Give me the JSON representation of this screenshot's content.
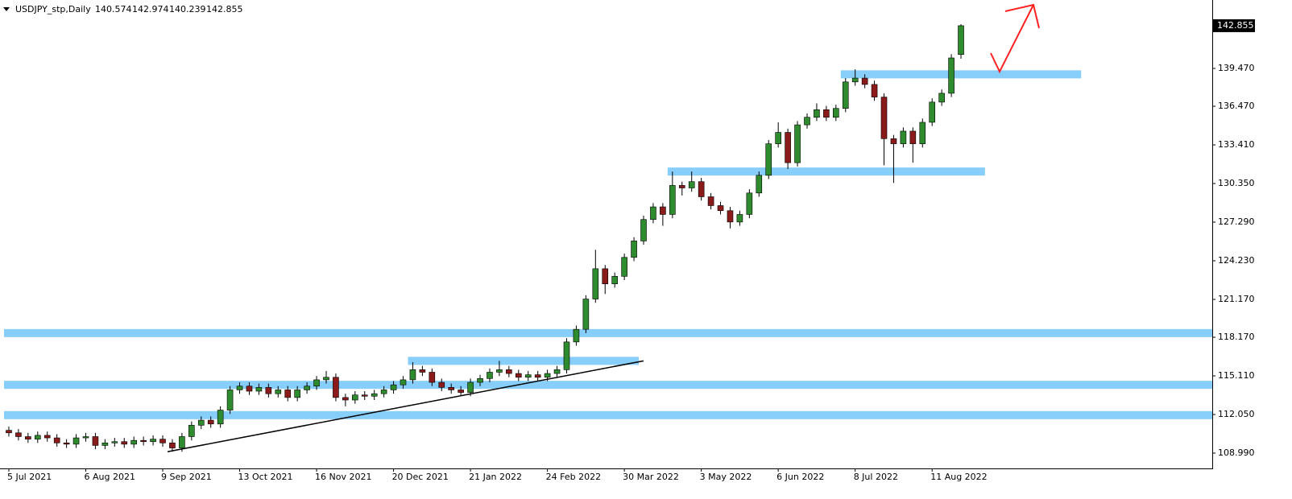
{
  "chart_data": {
    "type": "candlestick",
    "title": "USDJPY_stp,Daily",
    "bull_color": "#2e8b2e",
    "bear_color": "#8b1a1a",
    "zone_color": "#87cefa",
    "trend_color": "#000000",
    "ylim": [
      107.78,
      144.89
    ],
    "yticks": [
      {
        "value": 108.99,
        "label": "108.990"
      },
      {
        "value": 112.05,
        "label": "112.050"
      },
      {
        "value": 115.11,
        "label": "115.110"
      },
      {
        "value": 118.17,
        "label": "118.170"
      },
      {
        "value": 121.17,
        "label": "121.170"
      },
      {
        "value": 124.23,
        "label": "124.230"
      },
      {
        "value": 127.29,
        "label": "127.290"
      },
      {
        "value": 130.35,
        "label": "130.350"
      },
      {
        "value": 133.41,
        "label": "133.410"
      },
      {
        "value": 136.47,
        "label": "136.470"
      },
      {
        "value": 139.47,
        "label": "139.470"
      }
    ],
    "categories": [
      "5 Jul 2021",
      null,
      null,
      null,
      null,
      null,
      null,
      null,
      "6 Aug 2021",
      null,
      null,
      null,
      null,
      null,
      null,
      null,
      "9 Sep 2021",
      null,
      null,
      null,
      null,
      null,
      null,
      null,
      "13 Oct 2021",
      null,
      null,
      null,
      null,
      null,
      null,
      null,
      "16 Nov 2021",
      null,
      null,
      null,
      null,
      null,
      null,
      null,
      "20 Dec 2021",
      null,
      null,
      null,
      null,
      null,
      null,
      null,
      "21 Jan 2022",
      null,
      null,
      null,
      null,
      null,
      null,
      null,
      "24 Feb 2022",
      null,
      null,
      null,
      null,
      null,
      null,
      null,
      "30 Mar 2022",
      null,
      null,
      null,
      null,
      null,
      null,
      null,
      "3 May 2022",
      null,
      null,
      null,
      null,
      null,
      null,
      null,
      "6 Jun 2022",
      null,
      null,
      null,
      null,
      null,
      null,
      null,
      "8 Jul 2022",
      null,
      null,
      null,
      null,
      null,
      null,
      null,
      "11 Aug 2022",
      null,
      null,
      null
    ],
    "open": [
      110.8,
      110.6,
      110.3,
      110.1,
      110.4,
      110.2,
      109.8,
      109.7,
      110.2,
      110.3,
      109.6,
      109.8,
      109.9,
      109.7,
      110.0,
      109.9,
      110.1,
      109.8,
      109.4,
      110.3,
      111.2,
      111.6,
      111.3,
      112.4,
      114.0,
      114.3,
      113.9,
      114.2,
      113.7,
      114.0,
      113.4,
      114.0,
      114.3,
      114.8,
      115.0,
      113.4,
      113.2,
      113.6,
      113.5,
      113.7,
      114.0,
      114.4,
      114.8,
      115.6,
      115.4,
      114.6,
      114.2,
      114.0,
      113.8,
      114.6,
      114.9,
      115.4,
      115.6,
      115.3,
      115.0,
      115.2,
      115.0,
      115.3,
      115.6,
      117.8,
      118.8,
      121.2,
      123.6,
      122.4,
      123.0,
      124.5,
      125.8,
      127.5,
      128.5,
      127.9,
      130.2,
      130.0,
      130.5,
      129.3,
      128.6,
      128.2,
      127.3,
      127.9,
      129.6,
      131.0,
      133.5,
      134.4,
      132.0,
      135.0,
      135.6,
      136.2,
      135.6,
      136.3,
      138.4,
      138.7,
      138.2,
      137.2,
      133.9,
      133.5,
      134.5,
      133.5,
      135.2,
      136.8,
      137.5,
      140.574
    ],
    "high": [
      111.1,
      110.9,
      110.6,
      110.7,
      110.7,
      110.5,
      110.1,
      110.5,
      110.6,
      110.6,
      110.1,
      110.2,
      110.2,
      110.3,
      110.3,
      110.4,
      110.4,
      110.1,
      110.6,
      111.5,
      111.9,
      111.9,
      112.7,
      114.3,
      114.6,
      114.6,
      114.5,
      114.5,
      114.3,
      114.3,
      114.3,
      114.6,
      115.1,
      115.5,
      115.3,
      113.7,
      113.9,
      113.9,
      114.0,
      114.3,
      114.7,
      115.1,
      116.2,
      115.9,
      115.7,
      114.9,
      114.5,
      114.3,
      114.9,
      115.2,
      115.7,
      116.3,
      115.9,
      115.6,
      115.5,
      115.5,
      115.6,
      115.9,
      118.1,
      119.1,
      121.5,
      125.1,
      123.9,
      123.3,
      124.8,
      126.1,
      127.8,
      128.8,
      128.8,
      131.3,
      130.5,
      131.3,
      130.8,
      129.6,
      128.9,
      128.5,
      128.2,
      129.9,
      131.3,
      133.8,
      135.2,
      134.7,
      135.3,
      135.9,
      136.7,
      136.5,
      136.6,
      138.7,
      139.4,
      139.0,
      138.5,
      137.5,
      134.2,
      134.8,
      134.8,
      135.5,
      137.1,
      137.8,
      140.6,
      142.974
    ],
    "low": [
      110.3,
      110.0,
      109.8,
      109.8,
      109.9,
      109.5,
      109.4,
      109.4,
      109.9,
      109.3,
      109.3,
      109.5,
      109.4,
      109.4,
      109.6,
      109.6,
      109.5,
      109.1,
      109.1,
      110.0,
      110.9,
      111.0,
      111.0,
      112.1,
      113.7,
      113.6,
      113.6,
      113.4,
      113.4,
      113.1,
      113.1,
      113.7,
      114.0,
      114.5,
      113.1,
      112.7,
      112.9,
      113.2,
      113.2,
      113.4,
      113.7,
      114.1,
      114.5,
      115.1,
      114.3,
      113.9,
      113.7,
      113.5,
      113.5,
      114.3,
      114.6,
      115.1,
      115.0,
      114.7,
      114.7,
      114.7,
      114.7,
      115.0,
      115.3,
      117.5,
      118.5,
      120.9,
      121.6,
      122.1,
      122.7,
      124.2,
      125.5,
      127.2,
      127.0,
      127.6,
      129.4,
      129.7,
      129.0,
      128.3,
      127.9,
      126.8,
      127.0,
      127.6,
      129.3,
      130.7,
      133.2,
      131.5,
      131.7,
      134.7,
      135.3,
      135.3,
      135.3,
      136.0,
      138.1,
      137.9,
      136.9,
      131.8,
      130.4,
      133.2,
      132.0,
      133.2,
      134.9,
      136.5,
      137.2,
      140.239
    ],
    "close": [
      110.6,
      110.3,
      110.1,
      110.4,
      110.2,
      109.8,
      109.7,
      110.2,
      110.3,
      109.6,
      109.8,
      109.9,
      109.7,
      110.0,
      109.9,
      110.1,
      109.8,
      109.4,
      110.3,
      111.2,
      111.6,
      111.3,
      112.4,
      114.0,
      114.3,
      113.9,
      114.2,
      113.7,
      114.0,
      113.4,
      114.0,
      114.3,
      114.8,
      115.0,
      113.4,
      113.2,
      113.6,
      113.5,
      113.7,
      114.0,
      114.4,
      114.8,
      115.6,
      115.4,
      114.6,
      114.2,
      114.0,
      113.8,
      114.6,
      114.9,
      115.4,
      115.6,
      115.3,
      115.0,
      115.2,
      115.0,
      115.3,
      115.6,
      117.8,
      118.8,
      121.2,
      123.6,
      122.4,
      123.0,
      124.5,
      125.8,
      127.5,
      128.5,
      127.9,
      130.2,
      130.0,
      130.5,
      129.3,
      128.6,
      128.2,
      127.3,
      127.9,
      129.6,
      131.0,
      133.5,
      134.4,
      132.0,
      135.0,
      135.6,
      136.2,
      135.6,
      136.3,
      138.4,
      138.7,
      138.2,
      137.2,
      133.9,
      133.5,
      134.5,
      133.5,
      135.2,
      136.8,
      137.5,
      140.3,
      142.855
    ],
    "zones": [
      {
        "level": 118.5,
        "from": 0,
        "to": 126
      },
      {
        "level": 114.4,
        "from": 0,
        "to": 126
      },
      {
        "level": 112.0,
        "from": 0,
        "to": 126
      },
      {
        "level": 116.3,
        "from": 42,
        "to": 66
      },
      {
        "level": 131.3,
        "from": 69,
        "to": 102
      },
      {
        "level": 139.0,
        "from": 87,
        "to": 112
      }
    ],
    "trendline": {
      "from": [
        17,
        109.1
      ],
      "to": [
        66.5,
        116.3
      ]
    }
  }
}
